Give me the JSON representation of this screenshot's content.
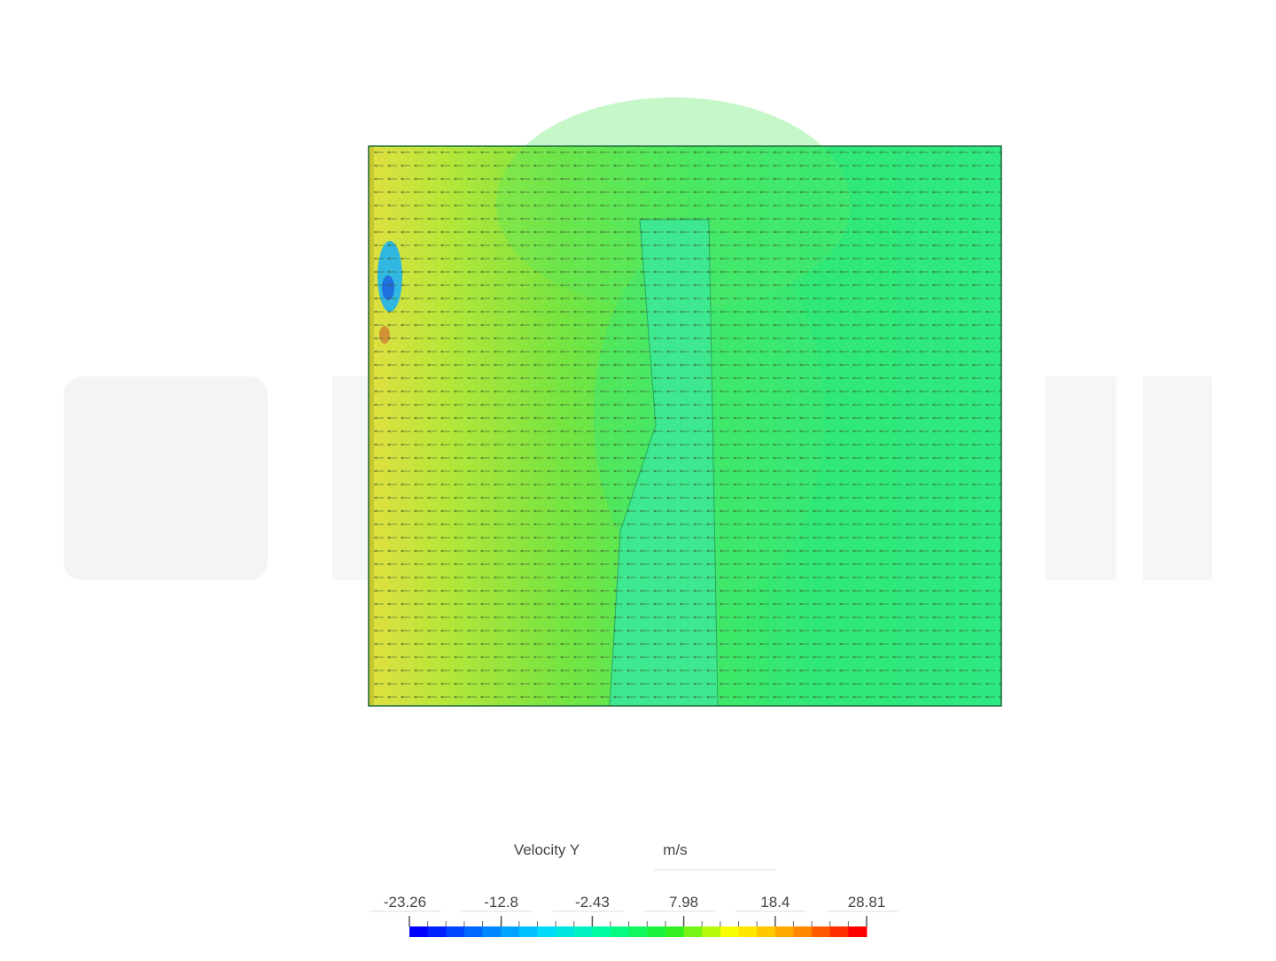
{
  "legend": {
    "title": "Velocity Y",
    "unit": "m/s",
    "ticks": [
      -23.26,
      -12.8,
      -2.43,
      7.98,
      18.4,
      28.81
    ],
    "colors": [
      "#0000ff",
      "#0077ff",
      "#00d8ff",
      "#00ff99",
      "#22ee22",
      "#ffff00",
      "#ff9900",
      "#ff0000"
    ]
  }
}
